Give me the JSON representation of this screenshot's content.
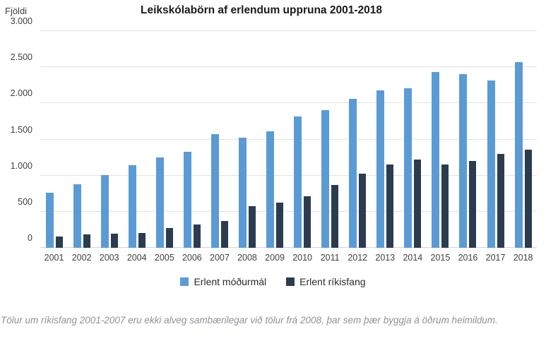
{
  "header": {
    "y_axis_title": "Fjöldi",
    "title": "Leikskólabörn af erlendum uppruna 2001-2018"
  },
  "chart_data": {
    "type": "bar",
    "title": "Leikskólabörn af erlendum uppruna 2001-2018",
    "xlabel": "",
    "ylabel": "Fjöldi",
    "ylim": [
      0,
      3000
    ],
    "ytick_interval": 500,
    "ytick_labels": [
      "0",
      "500",
      "1.000",
      "1.500",
      "2.000",
      "2.500",
      "3.000"
    ],
    "grid": true,
    "legend_position": "bottom",
    "categories": [
      "2001",
      "2002",
      "2003",
      "2004",
      "2005",
      "2006",
      "2007",
      "2008",
      "2009",
      "2010",
      "2011",
      "2012",
      "2013",
      "2014",
      "2015",
      "2016",
      "2017",
      "2018"
    ],
    "series": [
      {
        "name": "Erlent móðurmál",
        "color": "#5B9BD5",
        "values": [
          760,
          880,
          1010,
          1145,
          1250,
          1330,
          1575,
          1520,
          1615,
          1815,
          1905,
          2060,
          2175,
          2205,
          2435,
          2405,
          2320,
          2570
        ]
      },
      {
        "name": "Erlent ríkisfang",
        "color": "#2C3C50",
        "values": [
          160,
          190,
          195,
          210,
          270,
          320,
          370,
          575,
          630,
          710,
          865,
          1030,
          1150,
          1225,
          1155,
          1205,
          1295,
          1360
        ]
      }
    ]
  },
  "footnote": "Tölur um ríkisfang 2001-2007 eru ekki alveg sambærilegar við tölur frá 2008, þar sem þær byggja á öðrum heimildum."
}
